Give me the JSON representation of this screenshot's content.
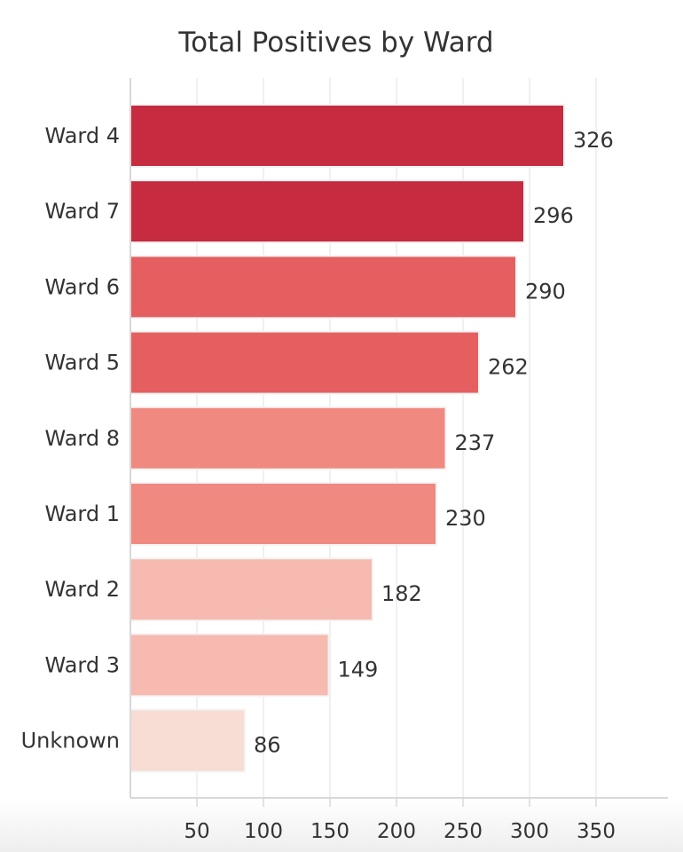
{
  "chart_data": {
    "type": "bar",
    "orientation": "horizontal",
    "title": "Total Positives by Ward",
    "xlabel": "",
    "ylabel": "",
    "categories": [
      "Ward 4",
      "Ward 7",
      "Ward 6",
      "Ward 5",
      "Ward 8",
      "Ward 1",
      "Ward 2",
      "Ward 3",
      "Unknown"
    ],
    "values": [
      326,
      296,
      290,
      262,
      237,
      230,
      182,
      149,
      86
    ],
    "colors": [
      "#c62b40",
      "#c62b40",
      "#e55f60",
      "#e55f60",
      "#f08a80",
      "#f08a80",
      "#f6bab0",
      "#f6bab0",
      "#f7ddd4"
    ],
    "xlim": [
      0,
      404
    ],
    "xticks": [
      50,
      100,
      150,
      200,
      250,
      300,
      350
    ],
    "grid": true,
    "data_labels": true
  }
}
